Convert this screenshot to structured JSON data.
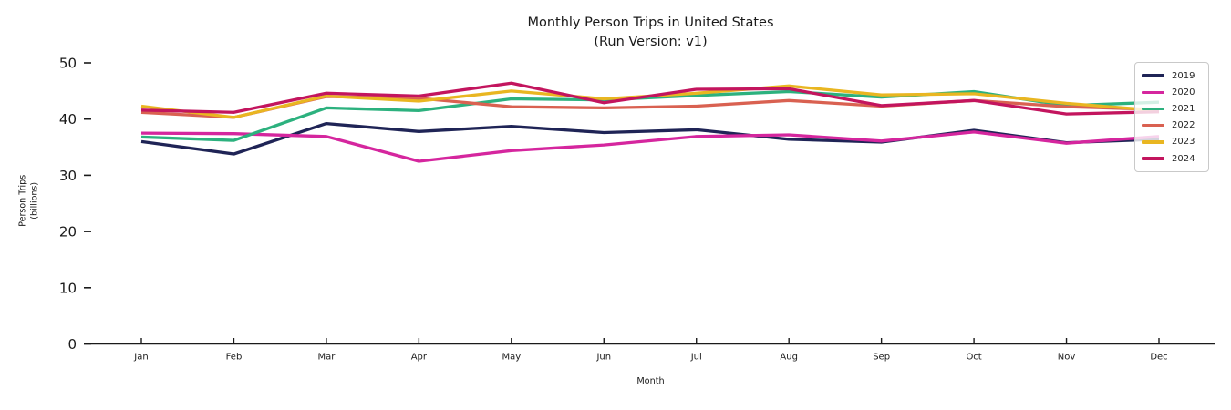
{
  "title": {
    "line1": "Monthly Person Trips in United States",
    "line2": "(Run Version: v1)"
  },
  "x_axis": {
    "label": "Month"
  },
  "y_axis": {
    "label_line1": "Person Trips",
    "label_line2": "(billions)"
  },
  "chart_data": {
    "type": "line",
    "title": "Monthly Person Trips in United States (Run Version: v1)",
    "xlabel": "Month",
    "ylabel": "Person Trips (billions)",
    "ylim": [
      0,
      50
    ],
    "y_ticks": [
      0,
      10,
      20,
      30,
      40,
      50
    ],
    "grid": false,
    "legend_position": "upper right",
    "categories": [
      "Jan",
      "Feb",
      "Mar",
      "Apr",
      "May",
      "Jun",
      "Jul",
      "Aug",
      "Sep",
      "Oct",
      "Nov",
      "Dec"
    ],
    "series": [
      {
        "name": "2019",
        "color": "#1f2456",
        "values": [
          36.0,
          33.8,
          39.2,
          37.8,
          38.7,
          37.6,
          38.1,
          36.4,
          35.9,
          38.0,
          35.8,
          36.4
        ]
      },
      {
        "name": "2020",
        "color": "#d5269e",
        "values": [
          37.5,
          37.4,
          36.9,
          32.5,
          34.4,
          35.4,
          36.9,
          37.2,
          36.1,
          37.7,
          35.7,
          36.9
        ]
      },
      {
        "name": "2021",
        "color": "#2cb17e",
        "values": [
          36.8,
          36.2,
          42.0,
          41.5,
          43.6,
          43.4,
          44.2,
          44.9,
          43.9,
          44.9,
          42.4,
          43.0
        ]
      },
      {
        "name": "2022",
        "color": "#d96151",
        "values": [
          41.2,
          40.3,
          44.0,
          43.7,
          42.2,
          42.0,
          42.3,
          43.3,
          42.3,
          43.3,
          42.2,
          41.7
        ]
      },
      {
        "name": "2023",
        "color": "#e9b621",
        "values": [
          42.3,
          40.3,
          44.1,
          43.2,
          45.0,
          43.6,
          44.6,
          45.9,
          44.3,
          44.5,
          42.8,
          41.5
        ]
      },
      {
        "name": "2024",
        "color": "#c3155e",
        "values": [
          41.6,
          41.2,
          44.6,
          44.1,
          46.4,
          42.9,
          45.3,
          45.4,
          42.4,
          43.3,
          40.9,
          41.3
        ]
      }
    ]
  }
}
